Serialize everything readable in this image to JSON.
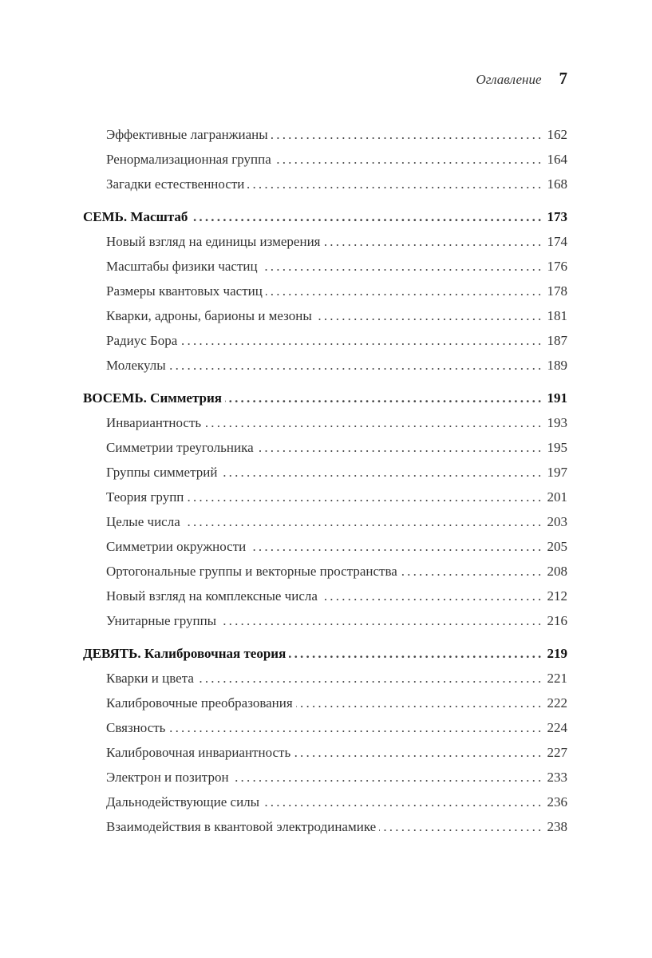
{
  "header": {
    "title": "Оглавление",
    "page_number": "7"
  },
  "toc": [
    {
      "type": "sub",
      "title": "Эффективные лагранжианы",
      "page": "162"
    },
    {
      "type": "sub",
      "title": "Ренормализационная группа",
      "page": "164"
    },
    {
      "type": "sub",
      "title": "Загадки естественности",
      "page": "168"
    },
    {
      "type": "chapter",
      "title": "СЕМЬ. Масштаб",
      "page": "173"
    },
    {
      "type": "sub",
      "title": "Новый взгляд на единицы измерения",
      "page": "174"
    },
    {
      "type": "sub",
      "title": "Масштабы физики частиц",
      "page": "176"
    },
    {
      "type": "sub",
      "title": "Размеры квантовых частиц",
      "page": "178"
    },
    {
      "type": "sub",
      "title": "Кварки, адроны, барионы и мезоны",
      "page": "181"
    },
    {
      "type": "sub",
      "title": "Радиус Бора",
      "page": "187"
    },
    {
      "type": "sub",
      "title": "Молекулы",
      "page": "189"
    },
    {
      "type": "chapter",
      "title": "ВОСЕМЬ. Симметрия",
      "page": "191"
    },
    {
      "type": "sub",
      "title": "Инвариантность",
      "page": "193"
    },
    {
      "type": "sub",
      "title": "Симметрии треугольника",
      "page": "195"
    },
    {
      "type": "sub",
      "title": "Группы симметрий",
      "page": "197"
    },
    {
      "type": "sub",
      "title": "Теория групп",
      "page": "201"
    },
    {
      "type": "sub",
      "title": "Целые числа",
      "page": "203"
    },
    {
      "type": "sub",
      "title": "Симметрии окружности",
      "page": "205"
    },
    {
      "type": "sub",
      "title": "Ортогональные группы и векторные пространства",
      "page": "208"
    },
    {
      "type": "sub",
      "title": "Новый взгляд на комплексные числа",
      "page": "212"
    },
    {
      "type": "sub",
      "title": "Унитарные группы",
      "page": "216"
    },
    {
      "type": "chapter",
      "title": "ДЕВЯТЬ. Калибровочная теория",
      "page": "219"
    },
    {
      "type": "sub",
      "title": "Кварки и цвета",
      "page": "221"
    },
    {
      "type": "sub",
      "title": "Калибровочные преобразования",
      "page": "222"
    },
    {
      "type": "sub",
      "title": "Связность",
      "page": "224"
    },
    {
      "type": "sub",
      "title": "Калибровочная инвариантность",
      "page": "227"
    },
    {
      "type": "sub",
      "title": "Электрон и позитрон",
      "page": "233"
    },
    {
      "type": "sub",
      "title": "Дальнодействующие силы",
      "page": "236"
    },
    {
      "type": "sub",
      "title": "Взаимодействия в квантовой электродинамике",
      "page": "238"
    }
  ]
}
